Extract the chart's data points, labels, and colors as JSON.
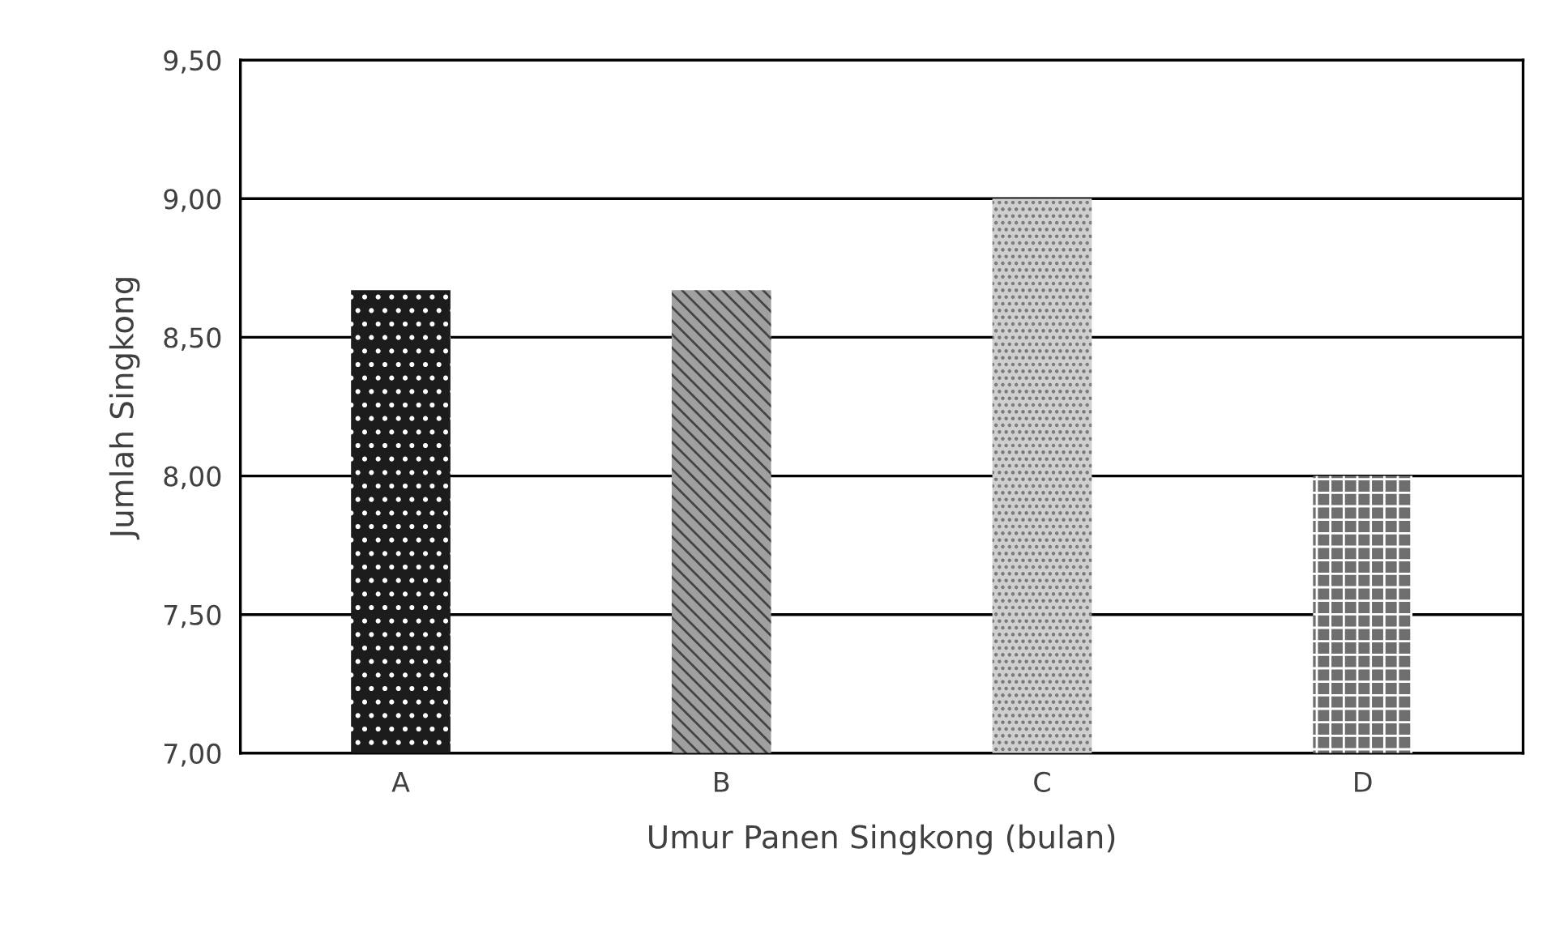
{
  "chart_data": {
    "type": "bar",
    "xlabel": "Umur Panen Singkong (bulan)",
    "ylabel": "Jumlah Singkong",
    "categories": [
      "A",
      "B",
      "C",
      "D"
    ],
    "values": [
      8.67,
      8.67,
      9.0,
      8.0
    ],
    "colors": [
      "#1c1c1c",
      "#a0a0a0",
      "#cfcfcf",
      "#6e6e6e"
    ],
    "ylim": [
      7,
      9.5
    ],
    "yticks": [
      {
        "value": 7,
        "label": "7,00"
      },
      {
        "value": 7.5,
        "label": "7,50"
      },
      {
        "value": 8,
        "label": "8,00"
      },
      {
        "value": 8.5,
        "label": "8,50"
      },
      {
        "value": 9,
        "label": "9,00"
      },
      {
        "value": 9.5,
        "label": "9,50"
      }
    ],
    "grid": "y",
    "legend": false
  }
}
